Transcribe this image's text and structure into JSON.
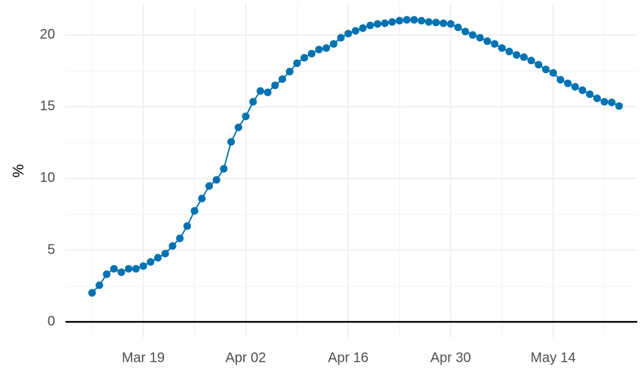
{
  "chart_data": {
    "type": "line",
    "y_label": "%",
    "x": [
      "Mar 12",
      "Mar 13",
      "Mar 14",
      "Mar 15",
      "Mar 16",
      "Mar 17",
      "Mar 18",
      "Mar 19",
      "Mar 20",
      "Mar 21",
      "Mar 22",
      "Mar 23",
      "Mar 24",
      "Mar 25",
      "Mar 26",
      "Mar 27",
      "Mar 28",
      "Mar 29",
      "Mar 30",
      "Mar 31",
      "Apr 01",
      "Apr 02",
      "Apr 03",
      "Apr 04",
      "Apr 05",
      "Apr 06",
      "Apr 07",
      "Apr 08",
      "Apr 09",
      "Apr 10",
      "Apr 11",
      "Apr 12",
      "Apr 13",
      "Apr 14",
      "Apr 15",
      "Apr 16",
      "Apr 17",
      "Apr 18",
      "Apr 19",
      "Apr 20",
      "Apr 21",
      "Apr 22",
      "Apr 23",
      "Apr 24",
      "Apr 25",
      "Apr 26",
      "Apr 27",
      "Apr 28",
      "Apr 29",
      "Apr 30",
      "May 01",
      "May 02",
      "May 03",
      "May 04",
      "May 05",
      "May 06",
      "May 07",
      "May 08",
      "May 09",
      "May 10",
      "May 11",
      "May 12",
      "May 13",
      "May 14",
      "May 15",
      "May 16",
      "May 17",
      "May 18",
      "May 19",
      "May 20",
      "May 21",
      "May 22",
      "May 23"
    ],
    "series": [
      {
        "color": "#0072b2",
        "values": [
          2.02,
          2.55,
          3.32,
          3.7,
          3.46,
          3.7,
          3.7,
          3.89,
          4.18,
          4.47,
          4.76,
          5.29,
          5.82,
          6.68,
          7.74,
          8.6,
          9.47,
          9.9,
          10.67,
          12.55,
          13.56,
          14.33,
          15.34,
          16.1,
          16.0,
          16.49,
          16.92,
          17.45,
          18.03,
          18.41,
          18.7,
          18.99,
          19.09,
          19.38,
          19.81,
          20.1,
          20.29,
          20.48,
          20.67,
          20.77,
          20.82,
          20.91,
          21.0,
          21.06,
          21.06,
          21.0,
          20.91,
          20.87,
          20.82,
          20.77,
          20.53,
          20.24,
          20.0,
          19.81,
          19.57,
          19.38,
          19.09,
          18.85,
          18.61,
          18.46,
          18.22,
          17.93,
          17.6,
          17.36,
          16.88,
          16.63,
          16.39,
          16.15,
          15.87,
          15.58,
          15.34,
          15.3,
          15.05
        ]
      }
    ],
    "xticks": [
      "Mar 19",
      "Apr 02",
      "Apr 16",
      "Apr 30",
      "May 14"
    ],
    "ylim": [
      -1.1,
      22.2
    ],
    "yticks": [
      0,
      5,
      10,
      15,
      20
    ],
    "grid": true
  }
}
